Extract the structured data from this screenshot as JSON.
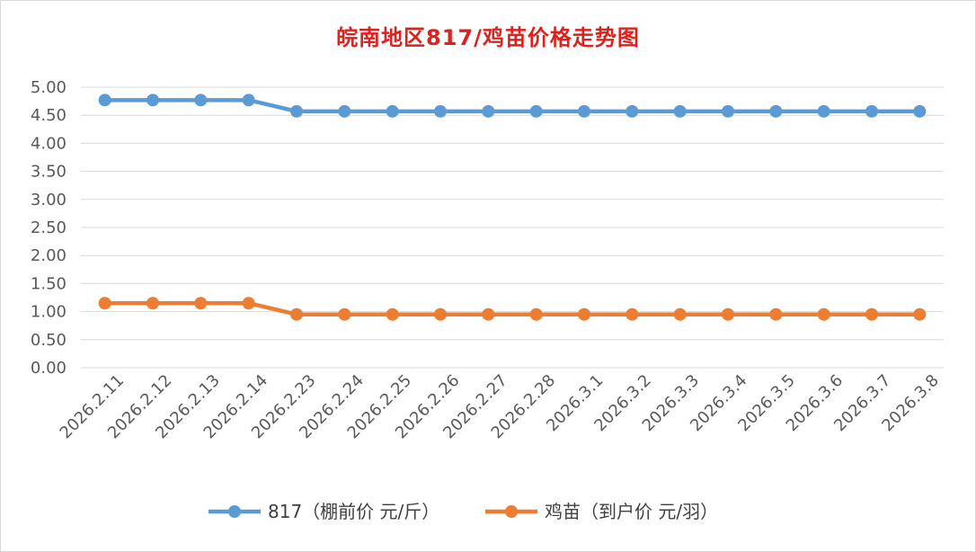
{
  "chart_data": {
    "type": "line",
    "title": "皖南地区817/鸡苗价格走势图",
    "categories": [
      "2026.2.11",
      "2026.2.12",
      "2026.2.13",
      "2026.2.14",
      "2026.2.23",
      "2026.2.24",
      "2026.2.25",
      "2026.2.26",
      "2026.2.27",
      "2026.2.28",
      "2026.3.1",
      "2026.3.2",
      "2026.3.3",
      "2026.3.4",
      "2026.3.5",
      "2026.3.6",
      "2026.3.7",
      "2026.3.8"
    ],
    "series": [
      {
        "name": "817（棚前价 元/斤）",
        "color": "#5b9bd5",
        "values": [
          4.77,
          4.77,
          4.77,
          4.77,
          4.57,
          4.57,
          4.57,
          4.57,
          4.57,
          4.57,
          4.57,
          4.57,
          4.57,
          4.57,
          4.57,
          4.57,
          4.57,
          4.57
        ]
      },
      {
        "name": "鸡苗（到户价 元/羽）",
        "color": "#ed7d31",
        "values": [
          1.15,
          1.15,
          1.15,
          1.15,
          0.95,
          0.95,
          0.95,
          0.95,
          0.95,
          0.95,
          0.95,
          0.95,
          0.95,
          0.95,
          0.95,
          0.95,
          0.95,
          0.95
        ]
      }
    ],
    "ylim": [
      0,
      5
    ],
    "yticks": [
      "0.00",
      "0.50",
      "1.00",
      "1.50",
      "2.00",
      "2.50",
      "3.00",
      "3.50",
      "4.00",
      "4.50",
      "5.00"
    ],
    "grid": true,
    "legend_position": "bottom",
    "title_color": "#e0201c"
  }
}
